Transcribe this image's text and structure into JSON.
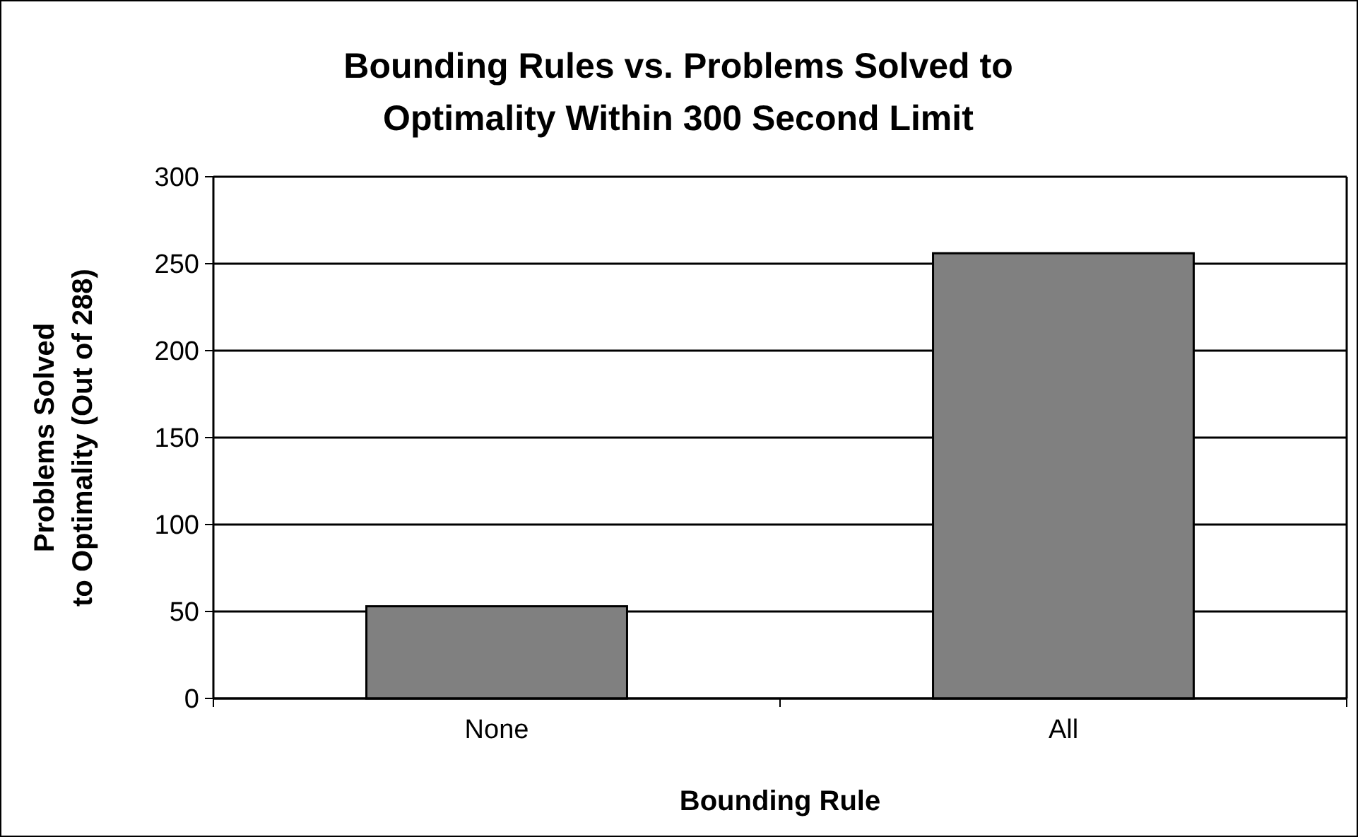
{
  "chart_data": {
    "type": "bar",
    "title": "Bounding Rules vs. Problems Solved to Optimality Within 300 Second Limit",
    "xlabel": "Bounding Rule",
    "ylabel": "Problems Solved to Optimality (Out of 288)",
    "categories": [
      "None",
      "All"
    ],
    "values": [
      53,
      256
    ],
    "color": "#808080",
    "ylim": [
      0,
      300
    ],
    "yticks": [
      0,
      50,
      100,
      150,
      200,
      250,
      300
    ],
    "grid": "y"
  }
}
